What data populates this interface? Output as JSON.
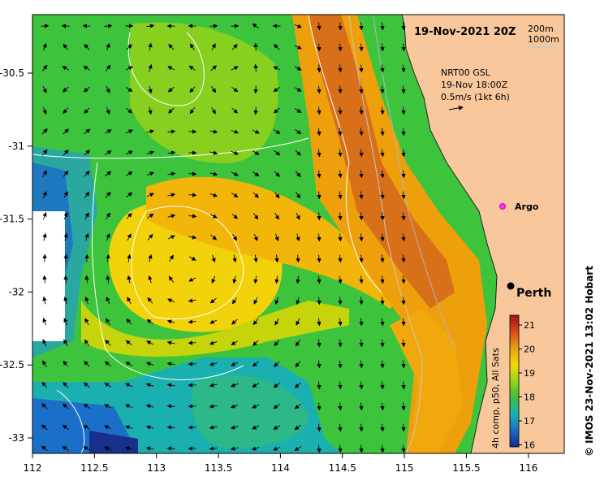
{
  "header": {
    "date": "19-Nov-2021 20Z",
    "contour_200": "200m",
    "contour_1000": "1000m"
  },
  "vector_legend": {
    "source": "NRT00 GSL",
    "time": "19-Nov 18:00Z",
    "scale": "0.5m/s (1kt 6h)"
  },
  "places": {
    "argo": "Argo",
    "perth": "Perth"
  },
  "axes": {
    "x_ticks": [
      "112",
      "112.5",
      "113",
      "113.5",
      "114",
      "114.5",
      "115",
      "115.5",
      "116"
    ],
    "y_ticks": [
      "-30.5",
      "-31",
      "-31.5",
      "-32",
      "-32.5",
      "-33"
    ]
  },
  "colorbar": {
    "label": "4h comp, p50, All Sats",
    "ticks": [
      "21",
      "20",
      "19",
      "18",
      "17",
      "16"
    ],
    "colors": [
      "#c62212",
      "#e8a20a",
      "#f4e000",
      "#74c818",
      "#18b4b4",
      "#1a40b8"
    ]
  },
  "credit": "© IMOS 23-Nov-2021 13:02 Hobart",
  "map": {
    "land_color": "#f8c89c",
    "lon_range": [
      112,
      116.3
    ],
    "lat_range": [
      -33.1,
      -30.1
    ]
  }
}
